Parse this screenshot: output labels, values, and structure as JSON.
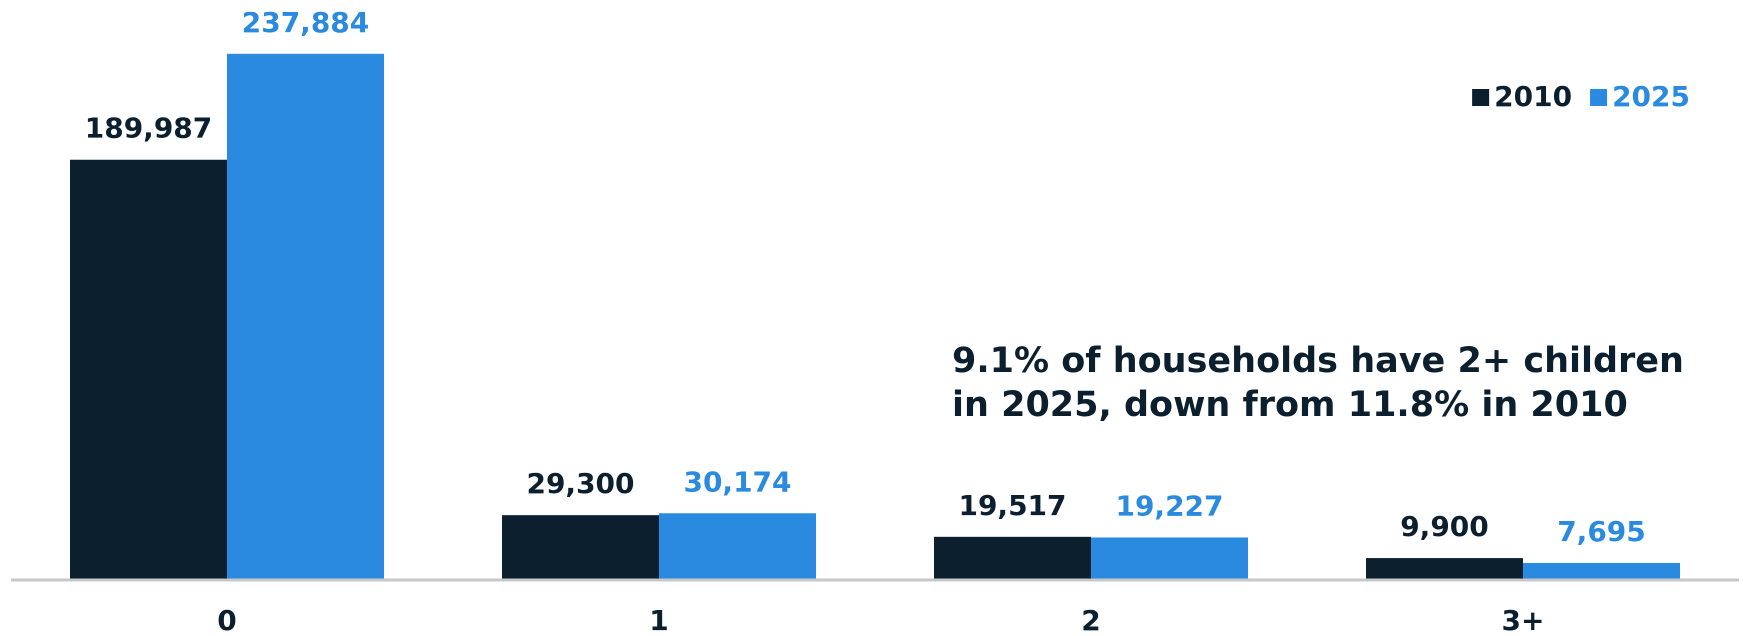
{
  "chart_data": {
    "type": "bar",
    "categories": [
      "0",
      "1",
      "2",
      "3+"
    ],
    "series": [
      {
        "name": "2010",
        "color": "#0b1f2e",
        "values": [
          189987,
          29300,
          19517,
          9900
        ],
        "value_labels": [
          "189,987",
          "29,300",
          "19,517",
          "9,900"
        ]
      },
      {
        "name": "2025",
        "color": "#2a8ae0",
        "values": [
          237884,
          30174,
          19227,
          7695
        ],
        "value_labels": [
          "237,884",
          "30,174",
          "19,227",
          "7,695"
        ]
      }
    ],
    "ylim": [
      0,
      250000
    ],
    "legend": "top-right",
    "annotation": [
      "9.1% of households have 2+ children",
      "in 2025, down from 11.8% in 2010"
    ]
  }
}
